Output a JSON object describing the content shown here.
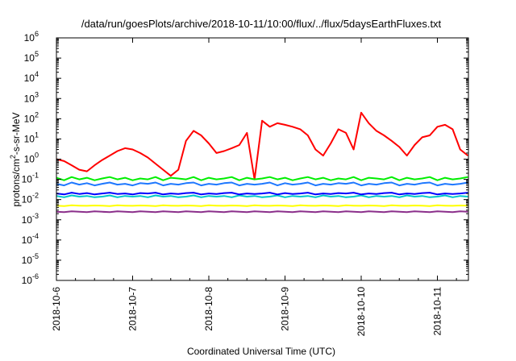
{
  "chart_data": {
    "type": "line",
    "title": "/data/run/goesPlots/archive/2018-10-11/10:00/flux/../flux/5daysEarthFluxes.txt",
    "xlabel": "Coordinated Universal Time (UTC)",
    "ylabel": {
      "base": "protons/cm",
      "sup": "2",
      "rest": "-s-sr-MeV"
    },
    "yscale": "log",
    "xlim": [
      "2018-10-06",
      "2018-10-11 10:00"
    ],
    "ylim": [
      1e-06,
      1000000.0
    ],
    "x_ticks": [
      "2018-10-6",
      "2018-10-7",
      "2018-10-8",
      "2018-10-9",
      "2018-10-10",
      "2018-10-11"
    ],
    "y_ticks": [
      {
        "value": 1e-06,
        "base": "10",
        "exp": "-6"
      },
      {
        "value": 1e-05,
        "base": "10",
        "exp": "-5"
      },
      {
        "value": 0.0001,
        "base": "10",
        "exp": "-4"
      },
      {
        "value": 0.001,
        "base": "10",
        "exp": "-3"
      },
      {
        "value": 0.01,
        "base": "10",
        "exp": "-2"
      },
      {
        "value": 0.1,
        "base": "10",
        "exp": "-1"
      },
      {
        "value": 1.0,
        "base": "10",
        "exp": "0"
      },
      {
        "value": 10.0,
        "base": "10",
        "exp": "1"
      },
      {
        "value": 100.0,
        "base": "10",
        "exp": "2"
      },
      {
        "value": 1000.0,
        "base": "10",
        "exp": "3"
      },
      {
        "value": 10000.0,
        "base": "10",
        "exp": "4"
      },
      {
        "value": 100000.0,
        "base": "10",
        "exp": "5"
      },
      {
        "value": 1000000.0,
        "base": "10",
        "exp": "6"
      }
    ],
    "grid": false,
    "legend": "none",
    "x_days": [
      0,
      0.1,
      0.2,
      0.3,
      0.4,
      0.5,
      0.6,
      0.7,
      0.8,
      0.9,
      1.0,
      1.1,
      1.2,
      1.3,
      1.4,
      1.5,
      1.6,
      1.7,
      1.8,
      1.9,
      2.0,
      2.1,
      2.2,
      2.3,
      2.4,
      2.5,
      2.6,
      2.7,
      2.8,
      2.9,
      3.0,
      3.1,
      3.2,
      3.3,
      3.4,
      3.5,
      3.6,
      3.7,
      3.8,
      3.9,
      4.0,
      4.1,
      4.2,
      4.3,
      4.4,
      4.5,
      4.6,
      4.7,
      4.8,
      4.9,
      5.0,
      5.1,
      5.2,
      5.3,
      5.4
    ],
    "series": [
      {
        "color": "#ff0000",
        "values": [
          1.0,
          0.8,
          0.5,
          0.3,
          0.25,
          0.5,
          0.9,
          1.5,
          2.5,
          3.5,
          3.0,
          2.0,
          1.2,
          0.6,
          0.3,
          0.15,
          0.3,
          8.0,
          25,
          15,
          6.0,
          2.0,
          2.5,
          3.5,
          5.0,
          20,
          0.1,
          80,
          40,
          60,
          50,
          40,
          30,
          15,
          3.0,
          1.5,
          6.0,
          30,
          20,
          3.0,
          200,
          60,
          25,
          15,
          8.0,
          4.0,
          1.5,
          5.0,
          12,
          15,
          40,
          50,
          30,
          3.0,
          1.5
        ]
      },
      {
        "color": "#00ee00",
        "values": [
          0.12,
          0.09,
          0.13,
          0.1,
          0.12,
          0.09,
          0.11,
          0.13,
          0.1,
          0.12,
          0.09,
          0.11,
          0.1,
          0.13,
          0.09,
          0.12,
          0.11,
          0.1,
          0.13,
          0.09,
          0.12,
          0.1,
          0.11,
          0.13,
          0.09,
          0.12,
          0.1,
          0.11,
          0.13,
          0.1,
          0.12,
          0.09,
          0.11,
          0.13,
          0.1,
          0.12,
          0.09,
          0.11,
          0.1,
          0.13,
          0.09,
          0.12,
          0.11,
          0.1,
          0.13,
          0.09,
          0.12,
          0.1,
          0.11,
          0.13,
          0.09,
          0.12,
          0.1,
          0.11,
          0.13
        ]
      },
      {
        "color": "#1e78ff",
        "values": [
          0.06,
          0.05,
          0.07,
          0.055,
          0.065,
          0.05,
          0.06,
          0.07,
          0.055,
          0.06,
          0.05,
          0.065,
          0.06,
          0.07,
          0.05,
          0.06,
          0.055,
          0.065,
          0.07,
          0.05,
          0.06,
          0.055,
          0.065,
          0.07,
          0.05,
          0.06,
          0.055,
          0.06,
          0.07,
          0.05,
          0.065,
          0.055,
          0.06,
          0.07,
          0.05,
          0.06,
          0.055,
          0.065,
          0.06,
          0.07,
          0.05,
          0.06,
          0.055,
          0.065,
          0.07,
          0.05,
          0.06,
          0.055,
          0.065,
          0.07,
          0.05,
          0.06,
          0.055,
          0.06,
          0.07
        ]
      },
      {
        "color": "#00c8c8",
        "values": [
          0.015,
          0.013,
          0.016,
          0.014,
          0.015,
          0.013,
          0.014,
          0.016,
          0.013,
          0.015,
          0.014,
          0.015,
          0.013,
          0.016,
          0.014,
          0.015,
          0.013,
          0.014,
          0.016,
          0.013,
          0.015,
          0.014,
          0.015,
          0.013,
          0.016,
          0.014,
          0.015,
          0.013,
          0.014,
          0.016,
          0.013,
          0.015,
          0.014,
          0.015,
          0.013,
          0.016,
          0.014,
          0.015,
          0.013,
          0.014,
          0.016,
          0.013,
          0.015,
          0.014,
          0.015,
          0.013,
          0.016,
          0.014,
          0.015,
          0.013,
          0.014,
          0.016,
          0.013,
          0.015,
          0.014
        ]
      },
      {
        "color": "#0000ff",
        "values": [
          0.02,
          0.018,
          0.022,
          0.019,
          0.021,
          0.018,
          0.02,
          0.022,
          0.019,
          0.02,
          0.018,
          0.021,
          0.02,
          0.022,
          0.018,
          0.02,
          0.019,
          0.021,
          0.022,
          0.018,
          0.02,
          0.019,
          0.021,
          0.022,
          0.018,
          0.02,
          0.019,
          0.02,
          0.022,
          0.018,
          0.021,
          0.019,
          0.02,
          0.022,
          0.018,
          0.02,
          0.019,
          0.021,
          0.02,
          0.022,
          0.018,
          0.02,
          0.019,
          0.021,
          0.022,
          0.018,
          0.02,
          0.019,
          0.021,
          0.022,
          0.018,
          0.02,
          0.019,
          0.02,
          0.022
        ]
      },
      {
        "color": "#ffff00",
        "values": [
          0.005,
          0.0048,
          0.0052,
          0.005,
          0.0049,
          0.0051,
          0.005,
          0.0048,
          0.0052,
          0.005,
          0.0049,
          0.0051,
          0.005,
          0.0048,
          0.0052,
          0.005,
          0.0049,
          0.0051,
          0.005,
          0.0048,
          0.0052,
          0.005,
          0.0049,
          0.0051,
          0.005,
          0.0048,
          0.0052,
          0.005,
          0.0049,
          0.0051,
          0.005,
          0.0048,
          0.0052,
          0.005,
          0.0049,
          0.0051,
          0.005,
          0.0048,
          0.0052,
          0.005,
          0.0049,
          0.0051,
          0.005,
          0.0048,
          0.0052,
          0.005,
          0.0049,
          0.0051,
          0.005,
          0.0048,
          0.0052,
          0.005,
          0.0049,
          0.0051,
          0.005
        ]
      },
      {
        "color": "#8b2f8b",
        "values": [
          0.0025,
          0.0024,
          0.0026,
          0.0025,
          0.0024,
          0.0026,
          0.0025,
          0.0024,
          0.0026,
          0.0025,
          0.0024,
          0.0026,
          0.0025,
          0.0024,
          0.0026,
          0.0025,
          0.0024,
          0.0026,
          0.0025,
          0.0024,
          0.0026,
          0.0025,
          0.0024,
          0.0026,
          0.0025,
          0.0024,
          0.0026,
          0.0025,
          0.0024,
          0.0026,
          0.0025,
          0.0024,
          0.0026,
          0.0025,
          0.0024,
          0.0026,
          0.0025,
          0.0024,
          0.0026,
          0.0025,
          0.0024,
          0.0026,
          0.0025,
          0.0024,
          0.0026,
          0.0025,
          0.0024,
          0.0026,
          0.0025,
          0.0024,
          0.0026,
          0.0025,
          0.0024,
          0.0026,
          0.0025
        ]
      }
    ]
  }
}
